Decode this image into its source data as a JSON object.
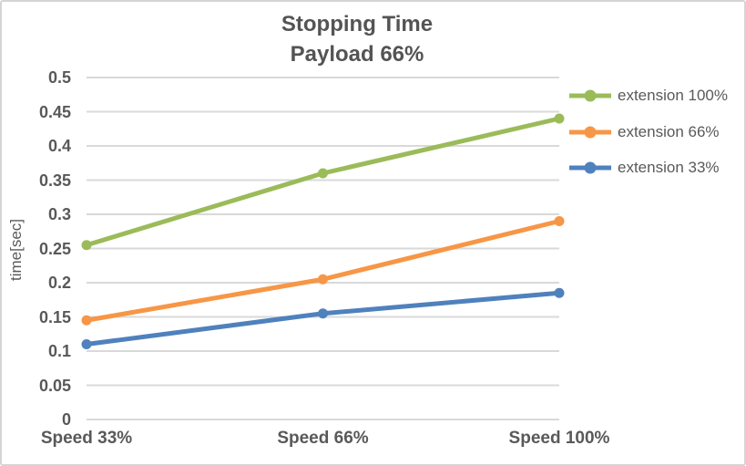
{
  "frame": {
    "background": "#ffffff",
    "border_color": "#d5d5d5"
  },
  "title": {
    "line1": "Stopping Time",
    "line2": "Payload 66%"
  },
  "chart_data": {
    "type": "line",
    "title": "Stopping Time",
    "subtitle": "Payload 66%",
    "categories": [
      "Speed 33%",
      "Speed 66%",
      "Speed 100%"
    ],
    "series": [
      {
        "name": "extension 100%",
        "color": "#9BBB59",
        "values": [
          0.255,
          0.36,
          0.44
        ]
      },
      {
        "name": "extension 66%",
        "color": "#F79646",
        "values": [
          0.145,
          0.205,
          0.29
        ]
      },
      {
        "name": "extension 33%",
        "color": "#4F81BD",
        "values": [
          0.11,
          0.155,
          0.185
        ]
      }
    ],
    "xlabel": "",
    "ylabel": "time[sec]",
    "ylim": [
      0,
      0.5
    ],
    "y_tick_step": 0.05,
    "y_ticks": [
      "0",
      "0.05",
      "0.1",
      "0.15",
      "0.2",
      "0.25",
      "0.3",
      "0.35",
      "0.4",
      "0.45",
      "0.5"
    ],
    "grid": "horizontal",
    "gridline_color": "#d9d9d9",
    "legend_position": "right",
    "text_color": "#595959",
    "title_color": "#545454"
  }
}
